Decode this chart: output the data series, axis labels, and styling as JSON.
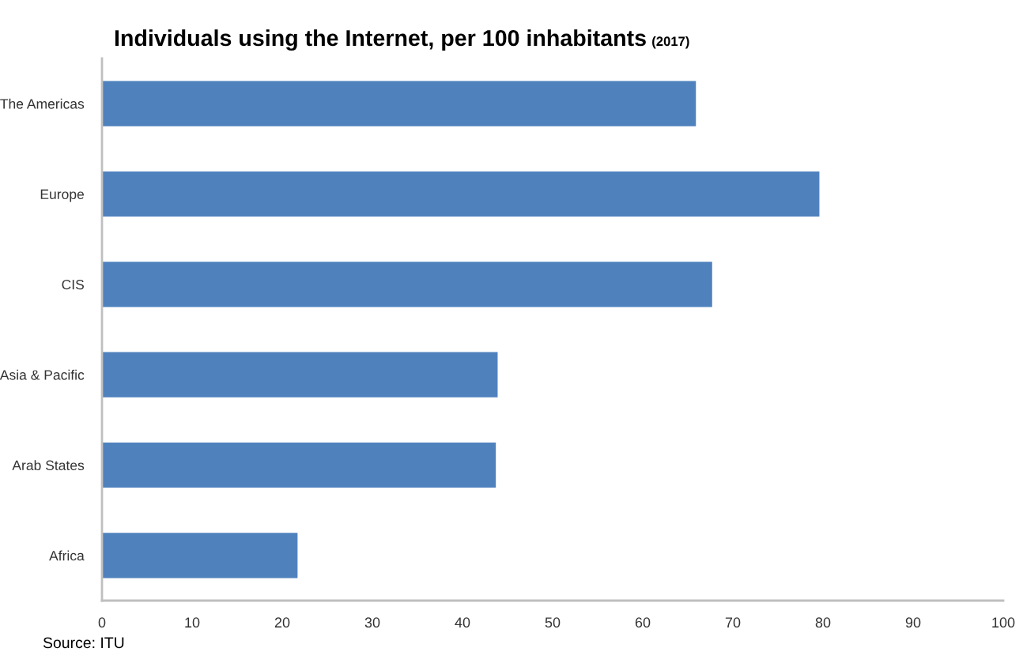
{
  "chart_data": {
    "type": "bar",
    "orientation": "horizontal",
    "title": "Individuals using the Internet, per 100 inhabitants",
    "subtitle": "(2017)",
    "categories": [
      "The Americas",
      "Europe",
      "CIS",
      "Asia & Pacific",
      "Arab States",
      "Africa"
    ],
    "values": [
      65.9,
      79.6,
      67.7,
      43.9,
      43.7,
      21.7
    ],
    "color": "#4f81bd",
    "xlim": [
      0,
      100
    ],
    "xticks": [
      0,
      10,
      20,
      30,
      40,
      50,
      60,
      70,
      80,
      90,
      100
    ],
    "grid": false,
    "annotations": [
      "Source: ITU"
    ]
  }
}
